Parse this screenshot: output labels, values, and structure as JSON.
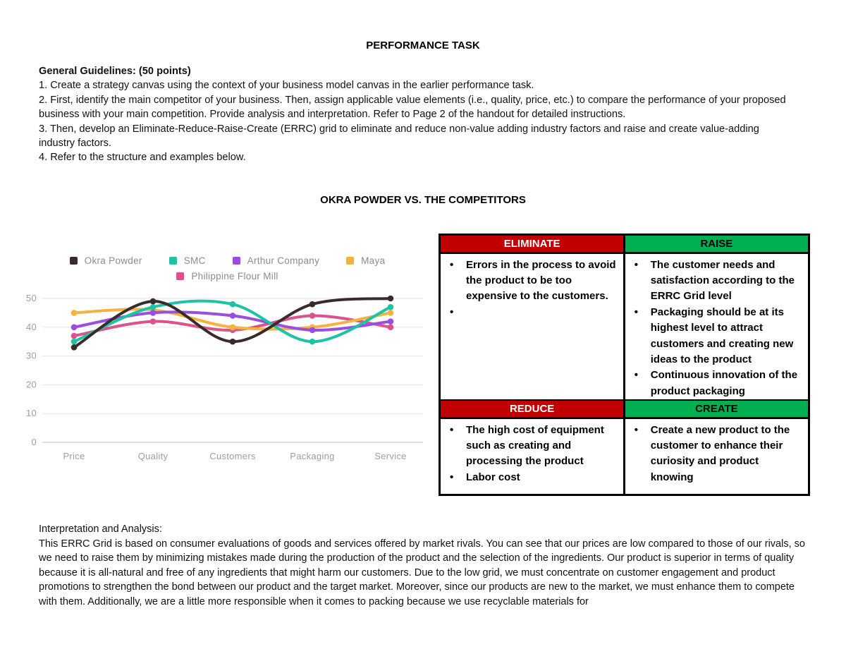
{
  "title": "PERFORMANCE TASK",
  "guidelines": {
    "heading": "General Guidelines: (50 points)",
    "items": [
      "1. Create a strategy canvas using the context of your business model canvas in the earlier performance task.",
      "2. First, identify the main competitor of your business. Then, assign applicable value elements (i.e., quality, price, etc.) to compare the performance of your proposed business with your main competition. Provide analysis and interpretation. Refer to Page 2 of the handout for detailed instructions.",
      "3. Then, develop an Eliminate-Reduce-Raise-Create (ERRC) grid to eliminate and reduce non-value adding industry factors and raise and create value-adding industry factors.",
      "4. Refer to the structure and examples below."
    ]
  },
  "chart_heading": "OKRA POWDER VS. THE COMPETITORS",
  "chart_data": {
    "type": "line",
    "title": "OKRA POWDER VS. THE COMPETITORS",
    "categories": [
      "Price",
      "Quality",
      "Customers",
      "Packaging",
      "Service"
    ],
    "series": [
      {
        "name": "Okra Powder",
        "color": "#382B2B",
        "values": [
          33,
          49,
          35,
          48,
          50
        ]
      },
      {
        "name": "SMC",
        "color": "#1EC2A5",
        "values": [
          35,
          47,
          48,
          35,
          47
        ]
      },
      {
        "name": "Arthur Company",
        "color": "#9B4DE0",
        "values": [
          40,
          45,
          44,
          39,
          42
        ]
      },
      {
        "name": "Maya",
        "color": "#F4B33F",
        "values": [
          45,
          46,
          40,
          40,
          45
        ]
      },
      {
        "name": "Philippine Flour Mill",
        "color": "#DB528C",
        "values": [
          37,
          42,
          39,
          44,
          40
        ]
      }
    ],
    "xlabel": "",
    "ylabel": "",
    "ylim": [
      0,
      50
    ],
    "yticks": [
      0,
      10,
      20,
      30,
      40,
      50
    ],
    "grid": true,
    "smooth": true,
    "legend_position": "top"
  },
  "errc_grid": {
    "eliminate": {
      "label": "ELIMINATE",
      "color": "#C00000",
      "items": [
        "Errors in the process to avoid the product to be too expensive to the customers.",
        ""
      ]
    },
    "raise": {
      "label": "RAISE",
      "color": "#00B050",
      "items": [
        "The customer needs and satisfaction according to the ERRC Grid level",
        "Packaging should be at its highest level to attract customers and creating new ideas to the product",
        "Continuous innovation of the product packaging"
      ]
    },
    "reduce": {
      "label": "REDUCE",
      "color": "#C00000",
      "items": [
        "The high cost of equipment such as creating and processing the product",
        "Labor cost"
      ]
    },
    "create": {
      "label": "CREATE",
      "color": "#00B050",
      "items": [
        "Create a new product to the customer to enhance their curiosity and product knowing"
      ]
    }
  },
  "interpretation": {
    "heading": "Interpretation and Analysis:",
    "body": "This ERRC Grid is based on consumer evaluations of goods and services offered by market rivals. You can see that our prices are low compared to those of our rivals, so we need to raise them by minimizing mistakes made during the production of the product and the selection of the ingredients. Our product is superior in terms of quality because it is all-natural and free of any ingredients that might harm our customers. Due to the low grid, we must concentrate on customer engagement and product promotions to strengthen the bond between our product and the target market. Moreover, since our products are new to the market, we must enhance them to compete with them. Additionally, we are a little more responsible when it comes to packing because we use recyclable materials for"
  },
  "colors": {
    "header_red": "#C00000",
    "header_green": "#00B050"
  }
}
